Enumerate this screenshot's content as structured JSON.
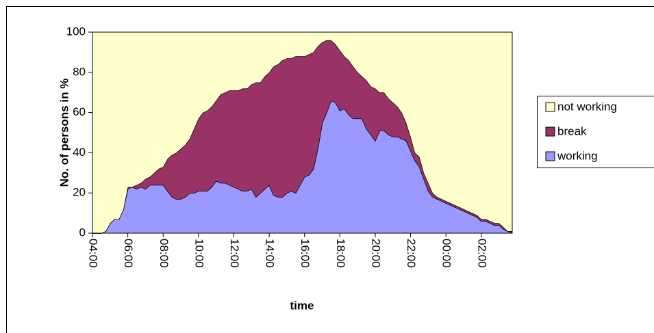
{
  "chart_data": {
    "type": "stacked-area",
    "x_label": "time",
    "y_label": "No. of persons in %",
    "categories": [
      "04:00",
      null,
      null,
      null,
      null,
      null,
      null,
      null,
      "06:00",
      null,
      null,
      null,
      null,
      null,
      null,
      null,
      "08:00",
      null,
      null,
      null,
      null,
      null,
      null,
      null,
      "10:00",
      null,
      null,
      null,
      null,
      null,
      null,
      null,
      "12:00",
      null,
      null,
      null,
      null,
      null,
      null,
      null,
      "14:00",
      null,
      null,
      null,
      null,
      null,
      null,
      null,
      "16:00",
      null,
      null,
      null,
      null,
      null,
      null,
      null,
      "18:00",
      null,
      null,
      null,
      null,
      null,
      null,
      null,
      "20:00",
      null,
      null,
      null,
      null,
      null,
      null,
      null,
      "22:00",
      null,
      null,
      null,
      null,
      null,
      null,
      null,
      "00:00",
      null,
      null,
      null,
      null,
      null,
      null,
      null,
      "02:00",
      null,
      null,
      null,
      null,
      null,
      null,
      null
    ],
    "series": [
      {
        "name": "working",
        "color": "#9999ff",
        "values": [
          0,
          0,
          0,
          1,
          5,
          7,
          7,
          12,
          22,
          23,
          22,
          23,
          22,
          24,
          24,
          24,
          24,
          21,
          18,
          17,
          17,
          18,
          20,
          20,
          21,
          21,
          21,
          23,
          26,
          25,
          25,
          24,
          23,
          22,
          21,
          21,
          22,
          18,
          20,
          22,
          24,
          19,
          18,
          18,
          20,
          21,
          20,
          24,
          28,
          29,
          32,
          42,
          55,
          60,
          66,
          65,
          61,
          62,
          59,
          57,
          57,
          57,
          52,
          49,
          46,
          51,
          51,
          49,
          48,
          48,
          47,
          46,
          41,
          36,
          33,
          27,
          21,
          18,
          17,
          16,
          15,
          14,
          13,
          12,
          11,
          10,
          9,
          8,
          6,
          6,
          5,
          4,
          4,
          2,
          1,
          0
        ]
      },
      {
        "name": "break",
        "color": "#993366",
        "values": [
          0,
          0,
          0,
          0,
          0,
          0,
          0,
          0,
          1,
          0,
          2,
          2,
          5,
          4,
          6,
          8,
          9,
          16,
          21,
          23,
          25,
          26,
          27,
          32,
          36,
          39,
          40,
          40,
          40,
          44,
          45,
          47,
          48,
          49,
          51,
          51,
          52,
          57,
          55,
          56,
          56,
          64,
          66,
          68,
          67,
          66,
          68,
          64,
          60,
          60,
          58,
          51,
          40,
          36,
          30,
          29,
          30,
          26,
          27,
          26,
          23,
          21,
          24,
          24,
          26,
          19,
          19,
          18,
          17,
          15,
          13,
          9,
          7,
          4,
          5,
          3,
          4,
          2,
          1,
          1,
          1,
          1,
          1,
          1,
          1,
          1,
          1,
          1,
          1,
          1,
          1,
          1,
          1,
          1,
          0,
          1
        ]
      },
      {
        "name": "not working",
        "color": "#ffffcc",
        "values": [
          100,
          100,
          100,
          99,
          95,
          93,
          93,
          88,
          77,
          77,
          76,
          75,
          73,
          72,
          70,
          68,
          67,
          63,
          61,
          60,
          58,
          56,
          53,
          48,
          43,
          40,
          39,
          37,
          34,
          31,
          30,
          29,
          29,
          29,
          28,
          28,
          26,
          25,
          25,
          22,
          20,
          17,
          16,
          14,
          13,
          13,
          12,
          12,
          12,
          11,
          10,
          7,
          5,
          4,
          4,
          6,
          9,
          12,
          14,
          17,
          20,
          22,
          24,
          27,
          28,
          30,
          30,
          33,
          35,
          37,
          40,
          45,
          52,
          60,
          62,
          70,
          75,
          80,
          82,
          83,
          84,
          85,
          86,
          87,
          88,
          89,
          90,
          91,
          93,
          93,
          94,
          95,
          95,
          97,
          99,
          99
        ]
      }
    ],
    "ylim": [
      0,
      100
    ],
    "yticks": [
      0,
      20,
      40,
      60,
      80,
      100
    ],
    "grid": false,
    "legend": "right"
  }
}
